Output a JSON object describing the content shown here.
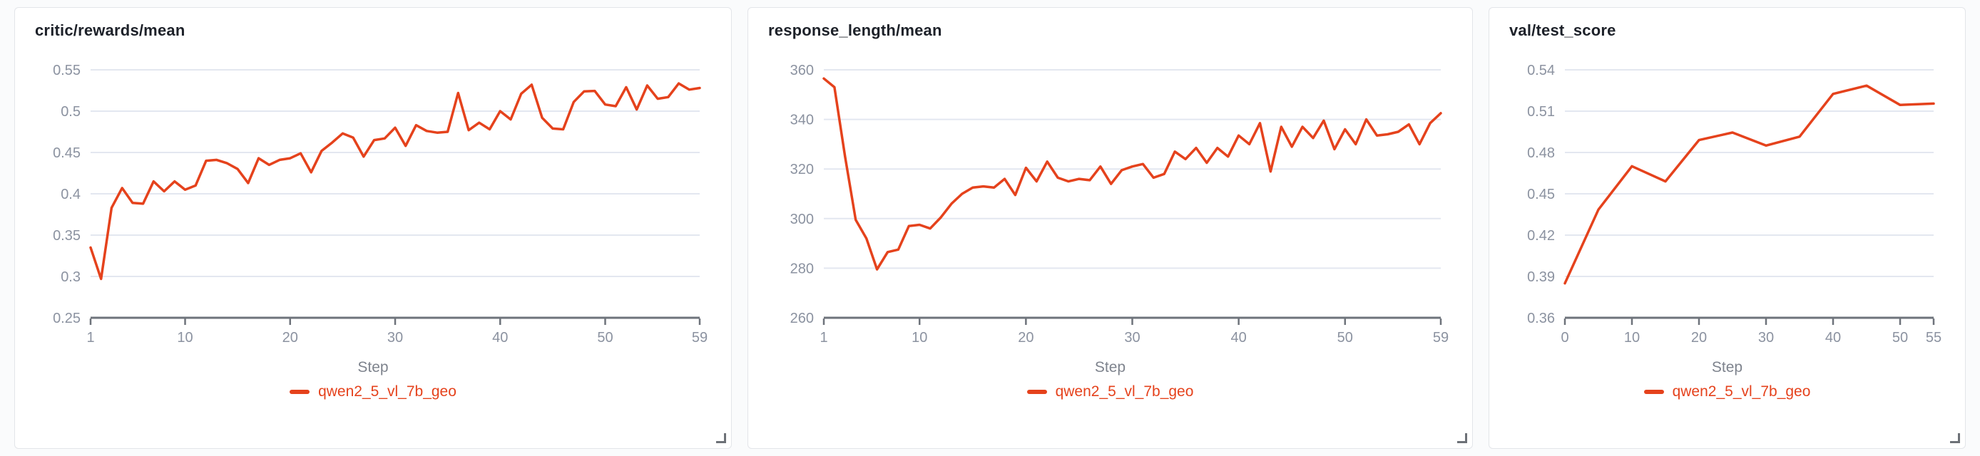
{
  "page": {
    "background_color": "#fafbfc",
    "panel_background": "#ffffff",
    "panel_border_color": "#e3e5e9",
    "title_color": "#1d2129",
    "tick_label_color": "#8b92a0",
    "axis_line_color": "#6e737b",
    "gridline_color": "#e3e7f0",
    "axis_title_color": "#7e838d",
    "resize_handle_color": "#6d7177"
  },
  "chart_data": [
    {
      "type": "line",
      "title": "critic/rewards/mean",
      "xlabel": "Step",
      "legend": "qwen2_5_vl_7b_geo",
      "line_color": "#e5421c",
      "grid": "horizontal",
      "legend_position": "bottom",
      "xlim": [
        1,
        59
      ],
      "ylim": [
        0.25,
        0.55
      ],
      "x_ticks": {
        "values": [
          1,
          10,
          20,
          30,
          40,
          50,
          59
        ],
        "labels": [
          "1",
          "10",
          "20",
          "30",
          "40",
          "50",
          "59"
        ]
      },
      "y_ticks": {
        "values": [
          0.25,
          0.3,
          0.35,
          0.4,
          0.45,
          0.5,
          0.55
        ],
        "labels": [
          "0.25",
          "0.3",
          "0.35",
          "0.4",
          "0.45",
          "0.5",
          "0.55"
        ]
      },
      "x": [
        1,
        2,
        3,
        4,
        5,
        6,
        7,
        8,
        9,
        10,
        11,
        12,
        13,
        14,
        15,
        16,
        17,
        18,
        19,
        20,
        21,
        22,
        23,
        24,
        25,
        26,
        27,
        28,
        29,
        30,
        31,
        32,
        33,
        34,
        35,
        36,
        37,
        38,
        39,
        40,
        41,
        42,
        43,
        44,
        45,
        46,
        47,
        48,
        49,
        50,
        51,
        52,
        53,
        54,
        55,
        56,
        57,
        58,
        59
      ],
      "y": [
        0.335,
        0.297,
        0.383,
        0.407,
        0.389,
        0.388,
        0.415,
        0.403,
        0.415,
        0.405,
        0.41,
        0.44,
        0.441,
        0.437,
        0.43,
        0.413,
        0.443,
        0.435,
        0.441,
        0.443,
        0.449,
        0.426,
        0.452,
        0.462,
        0.473,
        0.468,
        0.445,
        0.465,
        0.467,
        0.48,
        0.458,
        0.483,
        0.476,
        0.474,
        0.475,
        0.522,
        0.477,
        0.486,
        0.478,
        0.5,
        0.49,
        0.521,
        0.532,
        0.492,
        0.479,
        0.478,
        0.511,
        0.524,
        0.5245,
        0.508,
        0.506,
        0.529,
        0.502,
        0.531,
        0.515,
        0.517,
        0.5335,
        0.526,
        0.528
      ]
    },
    {
      "type": "line",
      "title": "response_length/mean",
      "xlabel": "Step",
      "legend": "qwen2_5_vl_7b_geo",
      "line_color": "#e5421c",
      "grid": "horizontal",
      "legend_position": "bottom",
      "xlim": [
        1,
        59
      ],
      "ylim": [
        260,
        360
      ],
      "x_ticks": {
        "values": [
          1,
          10,
          20,
          30,
          40,
          50,
          59
        ],
        "labels": [
          "1",
          "10",
          "20",
          "30",
          "40",
          "50",
          "59"
        ]
      },
      "y_ticks": {
        "values": [
          260,
          280,
          300,
          320,
          340,
          360
        ],
        "labels": [
          "260",
          "280",
          "300",
          "320",
          "340",
          "360"
        ]
      },
      "x": [
        1,
        2,
        3,
        4,
        5,
        6,
        7,
        8,
        9,
        10,
        11,
        12,
        13,
        14,
        15,
        16,
        17,
        18,
        19,
        20,
        21,
        22,
        23,
        24,
        25,
        26,
        27,
        28,
        29,
        30,
        31,
        32,
        33,
        34,
        35,
        36,
        37,
        38,
        39,
        40,
        41,
        42,
        43,
        44,
        45,
        46,
        47,
        48,
        49,
        50,
        51,
        52,
        53,
        54,
        55,
        56,
        57,
        58,
        59
      ],
      "y": [
        356.5,
        353,
        325,
        299.5,
        292,
        279.5,
        286.5,
        287.5,
        297,
        297.5,
        296,
        300.5,
        306,
        310,
        312.5,
        313,
        312.5,
        316,
        309.5,
        320.5,
        315,
        323,
        316.5,
        315,
        316,
        315.5,
        321,
        314,
        319.5,
        321,
        322,
        316.5,
        318,
        327,
        324,
        328.5,
        322.5,
        328.5,
        325,
        333.5,
        330,
        338.5,
        319,
        337,
        329,
        337,
        332.5,
        339.5,
        328,
        336,
        330,
        340,
        333.5,
        334,
        335,
        338,
        330,
        338.5,
        342.5
      ]
    },
    {
      "type": "line",
      "title": "val/test_score",
      "xlabel": "Step",
      "legend": "qwen2_5_vl_7b_geo",
      "line_color": "#e5421c",
      "grid": "horizontal",
      "legend_position": "bottom",
      "xlim": [
        0,
        55
      ],
      "ylim": [
        0.36,
        0.54
      ],
      "x_ticks": {
        "values": [
          0,
          10,
          20,
          30,
          40,
          50,
          55
        ],
        "labels": [
          "0",
          "10",
          "20",
          "30",
          "40",
          "50",
          "55"
        ]
      },
      "y_ticks": {
        "values": [
          0.36,
          0.39,
          0.42,
          0.45,
          0.48,
          0.51,
          0.54
        ],
        "labels": [
          "0.36",
          "0.39",
          "0.42",
          "0.45",
          "0.48",
          "0.51",
          "0.54"
        ]
      },
      "x": [
        0,
        5,
        10,
        15,
        20,
        25,
        30,
        35,
        40,
        45,
        50,
        55
      ],
      "y": [
        0.385,
        0.4385,
        0.47,
        0.459,
        0.489,
        0.4945,
        0.485,
        0.4915,
        0.5225,
        0.5285,
        0.5145,
        0.5155
      ]
    }
  ]
}
